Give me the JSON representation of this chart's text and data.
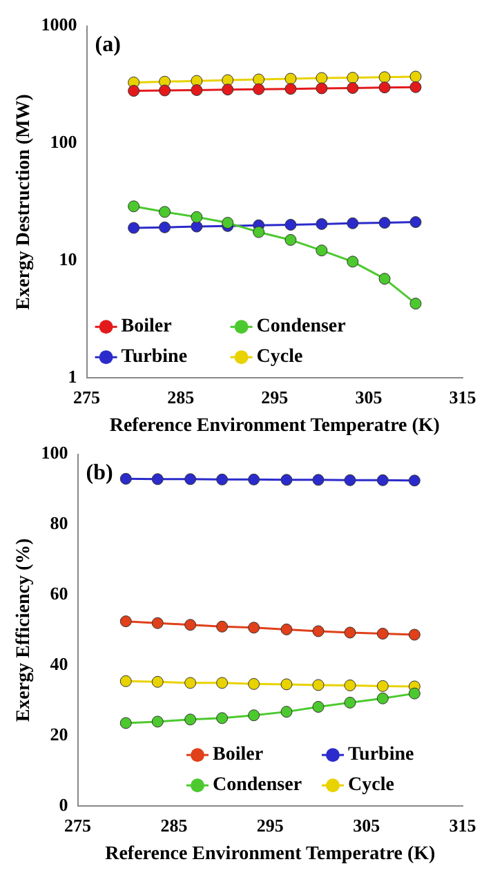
{
  "chart_data": [
    {
      "type": "line",
      "annotations": [
        "(a)"
      ],
      "xlabel": "Reference Environment Temperatre (K)",
      "ylabel": "Exergy Destruction (MW)",
      "x": [
        280,
        283.3,
        286.7,
        290,
        293.3,
        296.7,
        300,
        303.3,
        306.7,
        310
      ],
      "log": "y",
      "xlim": [
        275,
        315
      ],
      "xticks": [
        275,
        285,
        295,
        305,
        315
      ],
      "ylim": [
        1,
        1000
      ],
      "yticks": [
        1,
        10,
        100,
        1000
      ],
      "legend": "bottom left",
      "marker": "circle",
      "grid": false,
      "series": [
        {
          "name": "Boiler",
          "color": "#e31a1c",
          "values": [
            280,
            282,
            284,
            287,
            289,
            291,
            294,
            296,
            299,
            301
          ]
        },
        {
          "name": "Condenser",
          "color": "#4cc92e",
          "values": [
            29,
            26,
            23.5,
            21,
            17.5,
            15,
            12.2,
            9.8,
            7,
            4.3
          ]
        },
        {
          "name": "Turbine",
          "color": "#2b2bcc",
          "values": [
            19,
            19.2,
            19.5,
            19.7,
            20,
            20.2,
            20.5,
            20.8,
            21,
            21.3
          ]
        },
        {
          "name": "Cycle",
          "color": "#e8d200",
          "values": [
            330,
            335,
            340,
            345,
            350,
            355,
            360,
            362,
            366,
            370
          ]
        }
      ]
    },
    {
      "type": "line",
      "annotations": [
        "(b)"
      ],
      "xlabel": "Reference Environment Temperatre (K)",
      "ylabel": "Exergy Efficiency (%)",
      "x": [
        280,
        283.3,
        286.7,
        290,
        293.3,
        296.7,
        300,
        303.3,
        306.7,
        310
      ],
      "xlim": [
        275,
        315
      ],
      "xticks": [
        275,
        285,
        295,
        305,
        315
      ],
      "ylim": [
        0,
        100
      ],
      "yticks": [
        0,
        20,
        40,
        60,
        80,
        100
      ],
      "legend": "bottom right",
      "marker": "circle",
      "grid": false,
      "series": [
        {
          "name": "Boiler",
          "color": "#e0401a",
          "values": [
            52.5,
            52,
            51.5,
            51,
            50.7,
            50.2,
            49.7,
            49.3,
            49,
            48.7
          ]
        },
        {
          "name": "Turbine",
          "color": "#2b2bcc",
          "values": [
            93,
            92.9,
            92.9,
            92.8,
            92.8,
            92.7,
            92.7,
            92.6,
            92.6,
            92.5
          ]
        },
        {
          "name": "Condenser",
          "color": "#4cc92e",
          "values": [
            23.6,
            24,
            24.6,
            25,
            25.8,
            26.8,
            28.2,
            29.4,
            30.6,
            32
          ]
        },
        {
          "name": "Cycle",
          "color": "#e8d200",
          "values": [
            35.5,
            35.3,
            35,
            35,
            34.7,
            34.6,
            34.4,
            34.3,
            34.1,
            34
          ]
        }
      ]
    }
  ]
}
